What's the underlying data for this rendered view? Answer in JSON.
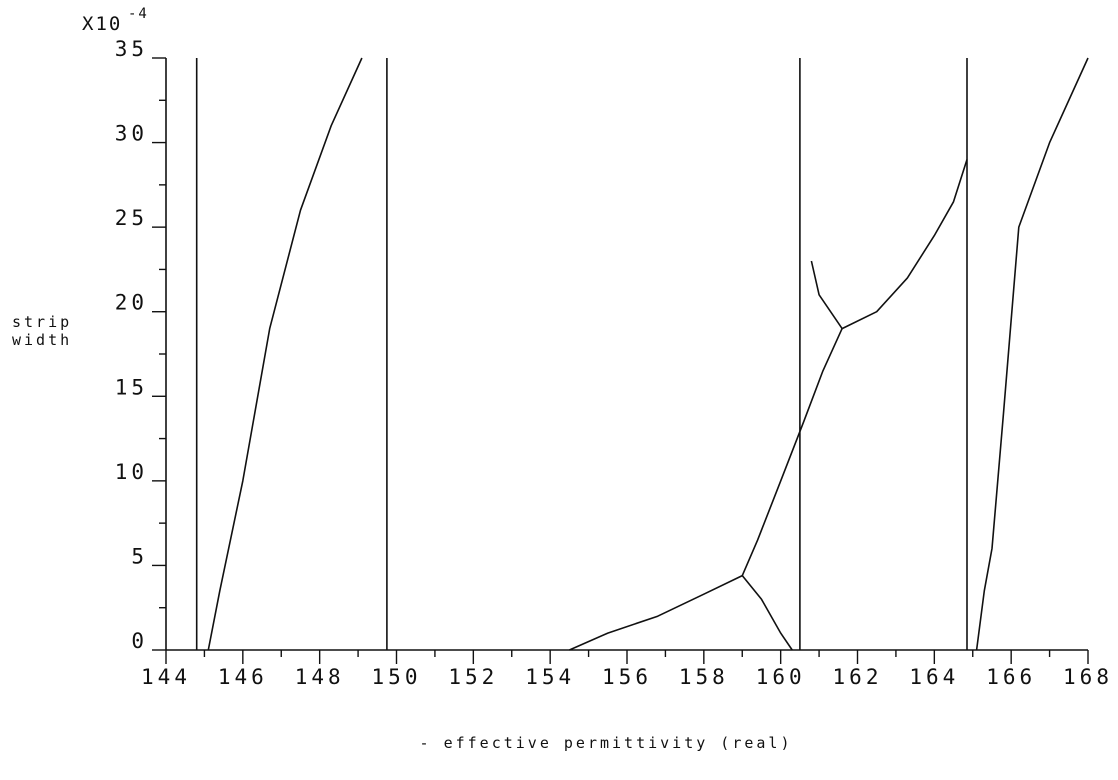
{
  "chart_data": {
    "type": "line",
    "title": "",
    "xlabel": "- effective permittivity (real)",
    "ylabel_line1": "strip",
    "ylabel_line2": "width",
    "y_scale_base": "X10",
    "y_scale_exponent": "-4",
    "xlim": [
      144,
      168
    ],
    "ylim": [
      0,
      35
    ],
    "x_ticks": [
      144,
      146,
      148,
      150,
      152,
      154,
      156,
      158,
      160,
      162,
      164,
      166,
      168
    ],
    "y_ticks": [
      0,
      5,
      10,
      15,
      20,
      25,
      30,
      35
    ],
    "x_tick_labels": [
      "144",
      "146",
      "148",
      "150",
      "152",
      "154",
      "156",
      "158",
      "160",
      "162",
      "164",
      "166",
      "168"
    ],
    "y_tick_labels": [
      "0",
      "5",
      "10",
      "15",
      "20",
      "25",
      "30",
      "35"
    ],
    "grid": false,
    "legend": "none",
    "series": [
      {
        "x": [
          144.8,
          144.8
        ],
        "y": [
          0,
          35
        ]
      },
      {
        "x": [
          145.1,
          145.4,
          146.0,
          146.7,
          147.5,
          148.3,
          149.1
        ],
        "y": [
          0,
          3.5,
          10,
          19,
          26,
          31,
          35
        ]
      },
      {
        "x": [
          149.75,
          149.75
        ],
        "y": [
          0,
          35
        ]
      },
      {
        "x": [
          154.5,
          155.5,
          156.8,
          158.0,
          159.0,
          159.5,
          160.0,
          160.3
        ],
        "y": [
          0,
          1,
          2,
          3.3,
          4.4,
          3,
          1,
          0
        ]
      },
      {
        "x": [
          159.0,
          159.4,
          160.0,
          160.6,
          161.1,
          161.6
        ],
        "y": [
          4.4,
          6.5,
          10,
          13.5,
          16.5,
          19
        ]
      },
      {
        "x": [
          160.5,
          160.5
        ],
        "y": [
          0,
          35
        ]
      },
      {
        "x": [
          160.8,
          161.0,
          161.3,
          161.6
        ],
        "y": [
          23,
          21,
          20,
          19
        ]
      },
      {
        "x": [
          161.6,
          162.5,
          163.3,
          164.0,
          164.5,
          164.85
        ],
        "y": [
          19,
          20,
          22,
          24.5,
          26.5,
          29
        ]
      },
      {
        "x": [
          164.85,
          164.85
        ],
        "y": [
          0,
          35
        ]
      },
      {
        "x": [
          165.1,
          165.3,
          165.5,
          165.8,
          166.2,
          167.0,
          168.0
        ],
        "y": [
          0,
          3.5,
          6,
          14,
          25,
          30,
          35
        ]
      }
    ]
  }
}
